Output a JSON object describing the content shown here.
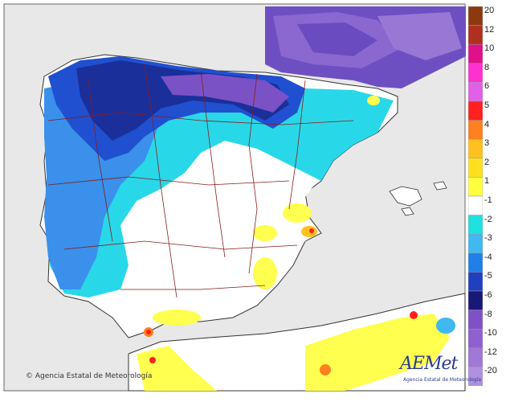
{
  "legend": {
    "labels": [
      "20",
      "12",
      "10",
      "8",
      "6",
      "5",
      "4",
      "3",
      "2",
      "1",
      "-1",
      "-2",
      "-3",
      "-4",
      "-5",
      "-6",
      "-8",
      "-10",
      "-12",
      "-20"
    ],
    "colors": [
      "#8B3A0F",
      "#B03020",
      "#E0108A",
      "#FF30D0",
      "#E060E8",
      "#FF2020",
      "#FF8020",
      "#FFC020",
      "#FFE020",
      "#FFFF40",
      "#FFFFFF",
      "#20E0E0",
      "#40B8F0",
      "#2080E8",
      "#2040C0",
      "#181878",
      "#8050C8",
      "#9060D0",
      "#A078D8",
      "#B090E0"
    ]
  },
  "footer": {
    "copyright": "Agencia Estatal de Meteorología"
  },
  "logo": {
    "name": "AEMet",
    "subtitle": "Agencia Estatal de Meteorología"
  }
}
